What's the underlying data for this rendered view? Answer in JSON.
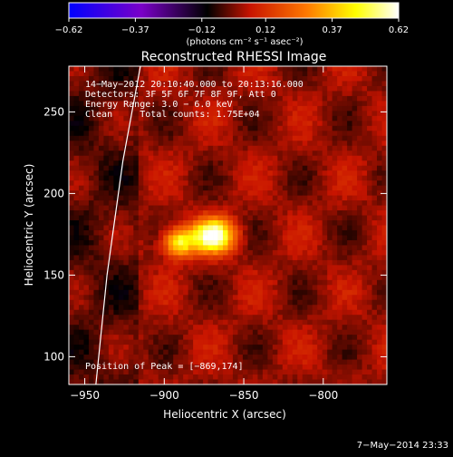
{
  "chart_data": {
    "type": "heatmap",
    "title": "Reconstructed RHESSI Image",
    "xlabel": "Heliocentric X (arcsec)",
    "ylabel": "Heliocentric Y (arcsec)",
    "xlim": [
      -960,
      -760
    ],
    "ylim": [
      83,
      278
    ],
    "xticks": [
      -950,
      -900,
      -850,
      -800
    ],
    "xtick_labels": [
      "−950",
      "−900",
      "−850",
      "−800"
    ],
    "yticks": [
      100,
      150,
      200,
      250
    ],
    "ytick_labels": [
      "100",
      "150",
      "200",
      "250"
    ],
    "colorbar": {
      "range": [
        -0.62,
        0.62
      ],
      "ticks": [
        -0.62,
        -0.37,
        -0.12,
        0.12,
        0.37,
        0.62
      ],
      "tick_labels": [
        "−0.62",
        "−0.37",
        "−0.12",
        "0.12",
        "0.37",
        "0.62"
      ],
      "unit_label": "(photons cm⁻² s⁻¹ asec⁻²)",
      "palette": [
        "#0000ff",
        "#7a00c8",
        "#000000",
        "#c81400",
        "#ff7800",
        "#ffff00",
        "#ffffff"
      ]
    },
    "peak": {
      "x": -869,
      "y": 174,
      "value": 0.62
    },
    "limb_curve": [
      [
        -943,
        83
      ],
      [
        -936,
        150
      ],
      [
        -926,
        220
      ],
      [
        -915,
        278
      ]
    ],
    "annotations": {
      "time_range": "14−May−2012 20:10:40.000 to 20:13:16.000",
      "detectors": "Detectors: 3F 5F 6F 7F 8F 9F, Att 0",
      "energy": "Energy Range: 3.0 − 6.0 keV",
      "method": "Clean     Total counts: 1.75E+04",
      "peak_position": "Position of Peak = [−869,174]"
    }
  },
  "footer": {
    "timestamp": "7−May−2014 23:33"
  }
}
